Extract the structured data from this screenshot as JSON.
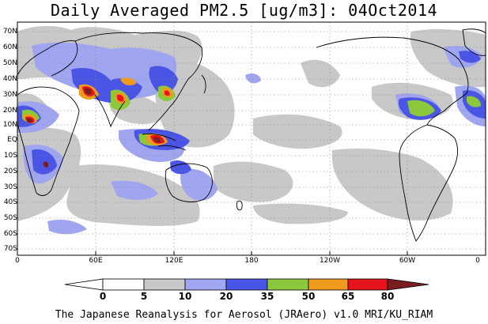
{
  "title": "Daily Averaged PM2.5 [ug/m3]: 04Oct2014",
  "footer": "The Japanese Reanalysis for Aerosol (JRAero) v1.0 MRI/KU_RIAM",
  "lat_labels": [
    "70N",
    "60N",
    "50N",
    "40N",
    "30N",
    "20N",
    "10N",
    "EQ",
    "10S",
    "20S",
    "30S",
    "40S",
    "50S",
    "60S",
    "70S"
  ],
  "lon_labels": [
    "0",
    "60E",
    "120E",
    "180",
    "120W",
    "60W",
    "0"
  ],
  "colorbar": {
    "bins": [
      "0",
      "5",
      "10",
      "20",
      "35",
      "50",
      "65",
      "80"
    ],
    "colors": [
      "#ffffff",
      "#c8c8c8",
      "#a0a5f0",
      "#4a55e6",
      "#8cc83c",
      "#f09b1e",
      "#e6141e",
      "#781e1e"
    ]
  }
}
